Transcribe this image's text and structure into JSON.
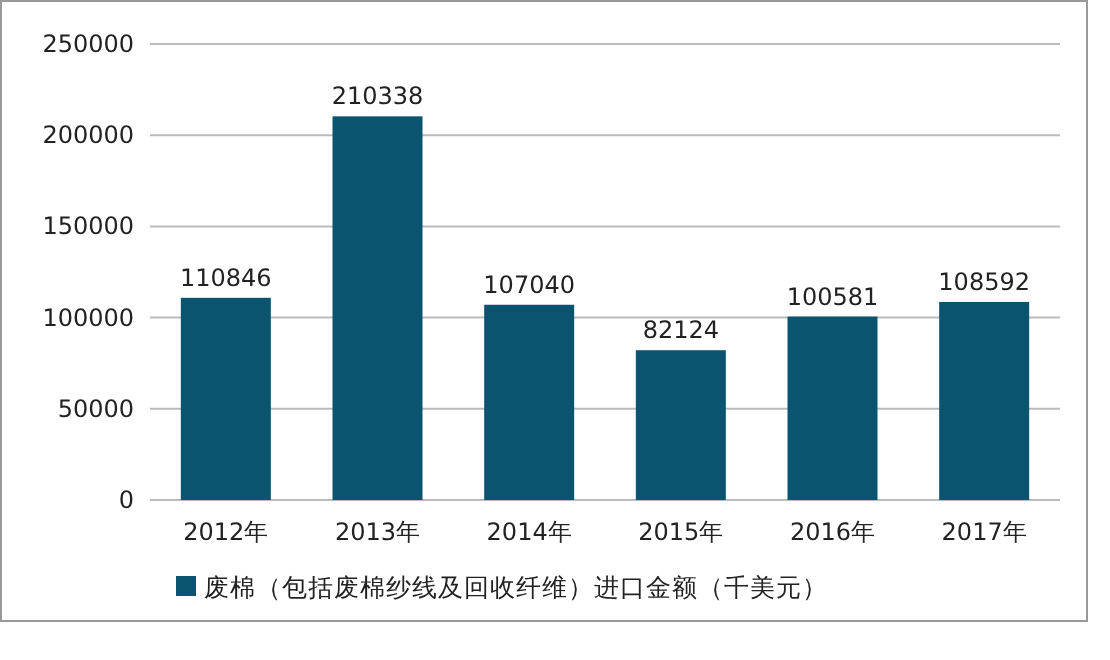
{
  "chart_data": {
    "type": "bar",
    "categories": [
      "2012年",
      "2013年",
      "2014年",
      "2015年",
      "2016年",
      "2017年"
    ],
    "series": [
      {
        "name": "废棉（包括废棉纱线及回收纤维）进口金额（千美元）",
        "color": "#0b5470",
        "values": [
          110846,
          210338,
          107040,
          82124,
          100581,
          108592
        ]
      }
    ],
    "ylim": [
      0,
      250000
    ],
    "yticks": [
      0,
      50000,
      100000,
      150000,
      200000,
      250000
    ],
    "grid": "y",
    "legend": "bottom",
    "data_labels": true
  }
}
